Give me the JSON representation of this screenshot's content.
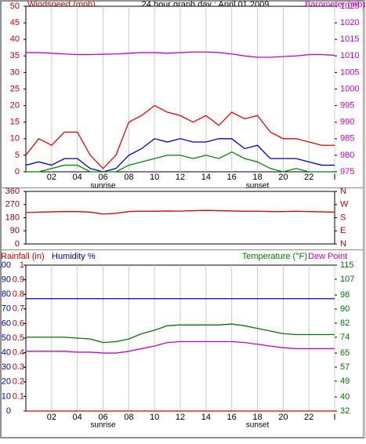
{
  "chart_data": [
    {
      "type": "line",
      "title": "24 hour graph day : April 01 2009",
      "y_label": "Windspeed (mph)",
      "y2_label": "Barometer (mb)",
      "x": [
        0,
        1,
        2,
        3,
        4,
        5,
        6,
        7,
        8,
        9,
        10,
        11,
        12,
        13,
        14,
        15,
        16,
        17,
        18,
        19,
        20,
        21,
        22,
        23,
        24
      ],
      "xlim": [
        0,
        24
      ],
      "xticks": [
        {
          "value": 2,
          "label": "02"
        },
        {
          "value": 4,
          "label": "04"
        },
        {
          "value": 6,
          "label": "06"
        },
        {
          "value": 8,
          "label": "08"
        },
        10,
        12,
        14,
        16,
        18,
        20,
        22,
        {
          "value": 24,
          "label": "I"
        }
      ],
      "ylim": [
        0,
        50
      ],
      "yticks": [
        0,
        5,
        10,
        15,
        20,
        25,
        30,
        35,
        40,
        45,
        50
      ],
      "y2lim": [
        975,
        1025
      ],
      "y2ticks": [
        975,
        980,
        985,
        990,
        995,
        1000,
        1005,
        1010,
        1015,
        1020,
        1025
      ],
      "annotations": [
        {
          "text": "sunrise",
          "x": 6
        },
        {
          "text": "sunset",
          "x": 18
        }
      ],
      "series": [
        {
          "color": "#ee0000",
          "values": [
            5,
            10,
            8,
            12,
            12,
            5,
            1,
            5,
            15,
            17,
            20,
            18,
            17,
            15,
            17,
            14,
            18,
            16,
            17,
            12,
            10,
            10,
            9,
            8,
            8
          ]
        },
        {
          "color": "#0000cc",
          "values": [
            2,
            3,
            2,
            4,
            4,
            1,
            0,
            1,
            5,
            7,
            10,
            9,
            10,
            9,
            9,
            10,
            10,
            7,
            8,
            4,
            4,
            4,
            3,
            2,
            2
          ]
        },
        {
          "color": "#008800",
          "values": [
            0,
            0,
            1,
            2,
            2,
            0,
            0,
            0,
            2,
            3,
            4,
            5,
            5,
            4,
            5,
            4,
            6,
            4,
            3,
            1,
            0,
            1,
            0,
            0,
            0
          ]
        },
        {
          "color": "#cc00cc",
          "axis": "y2",
          "values": [
            1011,
            1011,
            1010.8,
            1010.6,
            1010.4,
            1010.4,
            1010.5,
            1010.6,
            1010.8,
            1011,
            1011,
            1010.8,
            1011,
            1011.2,
            1011.2,
            1011,
            1010.6,
            1010,
            1009.6,
            1009.6,
            1009.8,
            1010,
            1010.4,
            1010.4,
            1010.2
          ]
        }
      ]
    },
    {
      "type": "line",
      "x": [
        0,
        1,
        2,
        3,
        4,
        5,
        6,
        7,
        8,
        9,
        10,
        11,
        12,
        13,
        14,
        15,
        16,
        17,
        18,
        19,
        20,
        21,
        22,
        23,
        24
      ],
      "xlim": [
        0,
        24
      ],
      "ylim": [
        0,
        360
      ],
      "yticks": [
        0,
        90,
        180,
        270,
        360
      ],
      "y2lim": [
        0,
        360
      ],
      "y2ticks": [
        {
          "value": 0,
          "label": "N"
        },
        {
          "value": 90,
          "label": "E"
        },
        {
          "value": 180,
          "label": "S"
        },
        {
          "value": 270,
          "label": "W"
        },
        {
          "value": 360,
          "label": "N"
        }
      ],
      "series": [
        {
          "color": "#dd0000",
          "values": [
            215,
            218,
            220,
            222,
            222,
            218,
            205,
            210,
            222,
            225,
            224,
            226,
            225,
            228,
            230,
            228,
            226,
            224,
            225,
            222,
            222,
            224,
            222,
            220,
            218
          ]
        }
      ]
    },
    {
      "type": "line",
      "x": [
        0,
        1,
        2,
        3,
        4,
        5,
        6,
        7,
        8,
        9,
        10,
        11,
        12,
        13,
        14,
        15,
        16,
        17,
        18,
        19,
        20,
        21,
        22,
        23,
        24
      ],
      "xlim": [
        0,
        24
      ],
      "xticks": [
        {
          "value": 2,
          "label": "02"
        },
        {
          "value": 4,
          "label": "04"
        },
        {
          "value": 6,
          "label": "06"
        },
        {
          "value": 8,
          "label": "08"
        },
        10,
        12,
        14,
        16,
        18,
        20,
        22,
        {
          "value": 24,
          "label": "I"
        }
      ],
      "annotations": [
        {
          "text": "sunrise",
          "x": 6
        },
        {
          "text": "sunset",
          "x": 18
        }
      ],
      "ylim": [
        0,
        100
      ],
      "yticks": [
        0,
        10,
        20,
        30,
        40,
        50,
        60,
        70,
        80,
        90,
        100
      ],
      "y3lim": [
        0,
        1
      ],
      "y3ticks": [
        0.1,
        0.2,
        0.3,
        0.4,
        0.5,
        0.6,
        0.7,
        0.8,
        0.9,
        1
      ],
      "y2lim": [
        32,
        115
      ],
      "y2ticks": [
        32,
        40,
        49,
        57,
        65,
        74,
        82,
        90,
        98,
        107,
        115
      ],
      "series": [
        {
          "name": "Rainfall (in)",
          "color": "#dd0000",
          "axis": "y3",
          "values": [
            0,
            0,
            0,
            0,
            0,
            0,
            0,
            0,
            0,
            0,
            0,
            0,
            0,
            0,
            0,
            0,
            0,
            0,
            0,
            0,
            0,
            0,
            0,
            0,
            0
          ]
        },
        {
          "name": "Humidity %",
          "color": "#0000cc",
          "values": [
            77,
            77,
            77,
            77,
            77,
            77,
            77,
            77,
            77,
            77,
            77,
            77,
            77,
            77,
            77,
            77,
            77,
            77,
            77,
            77,
            77,
            77,
            77,
            77,
            77
          ]
        },
        {
          "name": "Temperature (°F)",
          "color": "#007700",
          "axis": "y2",
          "values": [
            74,
            74,
            74,
            74,
            73.5,
            73,
            71,
            71.5,
            73,
            76,
            78,
            80.5,
            81,
            81,
            81,
            81,
            81.5,
            80.5,
            79,
            77.5,
            76,
            75.5,
            75.5,
            75.5,
            75.5
          ]
        },
        {
          "name": "Dew Point",
          "color": "#cc00cc",
          "axis": "y2",
          "values": [
            66,
            66,
            66,
            66,
            65.5,
            65.5,
            65,
            65,
            66,
            67.5,
            69,
            71,
            71.5,
            71.5,
            71.5,
            71.5,
            71.5,
            71,
            70,
            69,
            68,
            67.5,
            67.5,
            67.5,
            67.5
          ]
        }
      ]
    }
  ]
}
